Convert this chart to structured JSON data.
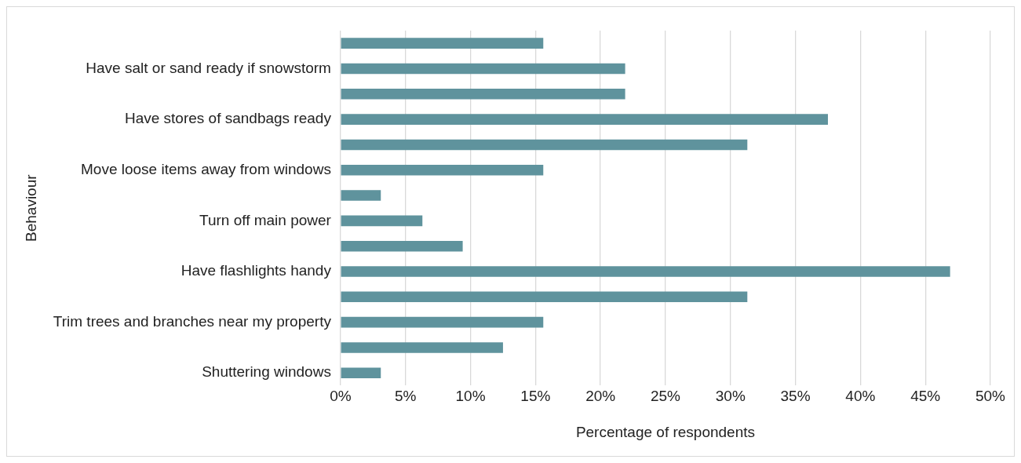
{
  "chart_data": {
    "type": "bar",
    "orientation": "horizontal",
    "xlabel": "Percentage of respondents",
    "ylabel": "Behaviour",
    "categories": [
      null,
      "Have salt or sand ready if snowstorm",
      null,
      "Have stores of sandbags ready",
      null,
      "Move loose items away from windows",
      null,
      "Turn off main power",
      null,
      "Have flashlights handy",
      null,
      "Trim trees and branches near my property",
      null,
      "Shuttering windows"
    ],
    "values": [
      15.6,
      21.9,
      21.9,
      37.5,
      31.3,
      15.6,
      3.1,
      6.3,
      9.4,
      46.9,
      31.3,
      15.6,
      12.5,
      3.1
    ],
    "color": "#5f939d",
    "xlim": [
      0,
      50
    ],
    "xticks": [
      {
        "value": 0,
        "label": "0%"
      },
      {
        "value": 5,
        "label": "5%"
      },
      {
        "value": 10,
        "label": "10%"
      },
      {
        "value": 15,
        "label": "15%"
      },
      {
        "value": 20,
        "label": "20%"
      },
      {
        "value": 25,
        "label": "25%"
      },
      {
        "value": 30,
        "label": "30%"
      },
      {
        "value": 35,
        "label": "35%"
      },
      {
        "value": 40,
        "label": "40%"
      },
      {
        "value": 45,
        "label": "45%"
      },
      {
        "value": 50,
        "label": "50%"
      }
    ],
    "grid": "x"
  }
}
